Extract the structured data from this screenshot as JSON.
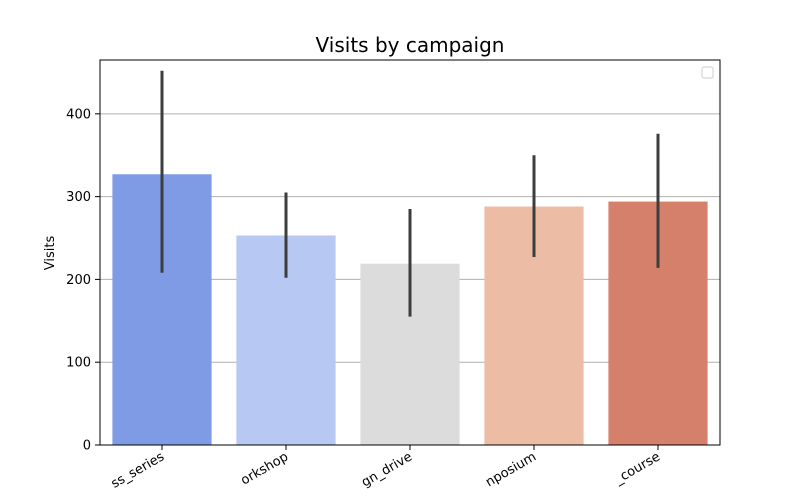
{
  "chart_data": {
    "type": "bar",
    "title": "Visits by campaign",
    "xlabel": "",
    "ylabel": "Visits",
    "categories": [
      "ss_series",
      "orkshop",
      "gn_drive",
      "nposium",
      "_course"
    ],
    "values": [
      327,
      253,
      219,
      288,
      294
    ],
    "error_low": [
      208,
      202,
      155,
      227,
      214
    ],
    "error_high": [
      452,
      305,
      285,
      350,
      376
    ],
    "ylim": [
      0,
      465
    ],
    "yticks": [
      0,
      100,
      200,
      300,
      400
    ],
    "grid": "horizontal",
    "legend": "top-right, empty",
    "colors": [
      "#7f9be5",
      "#b7c9f2",
      "#dcdcdc",
      "#ecbca5",
      "#d5806b"
    ],
    "errorbar_color": "#3d3d3d"
  }
}
